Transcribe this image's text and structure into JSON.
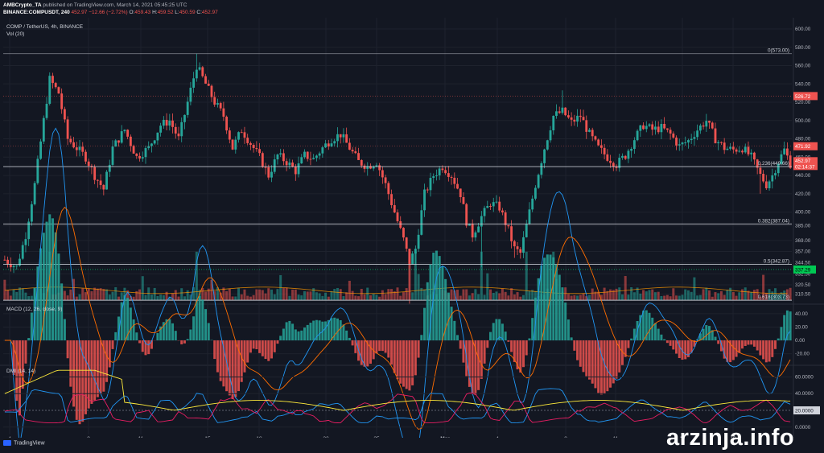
{
  "header": {
    "publisher": "AMBCrypto_TA",
    "published_text": " published on TradingView.com, March 14, 2021 05:45:25 UTC",
    "symbol_full": "BINANCE:COMPUSDT, 240",
    "last_price": "452.97",
    "change": "−12.66 (−2.72%)",
    "ohlc": {
      "o_label": "O:",
      "o": "459.43",
      "h_label": "H:",
      "h": "459.52",
      "l_label": "L:",
      "l": "450.59",
      "c_label": "C:",
      "c": "452.97"
    }
  },
  "legend": {
    "symbol": "COMP / TetherUS, 4h, BINANCE",
    "volume": "Vol (20)",
    "macd": "MACD (12, 26, close, 9)",
    "dmi": "DMI (14, 14)"
  },
  "footer": {
    "brand": "TradingView"
  },
  "watermark": "arzinja.info",
  "colors": {
    "background": "#131722",
    "up": "#26a69a",
    "down": "#ef5350",
    "grid": "#1e222d",
    "axis_text": "#b2b5be",
    "macd_line": "#2196f3",
    "signal_line": "#ff6d00",
    "adx": "#ffeb3b",
    "di_plus": "#2196f3",
    "di_minus": "#e91e63"
  },
  "chart_data": {
    "type": "candlestick",
    "x_tick_labels": [
      "4",
      "8",
      "11",
      "15",
      "18",
      "22",
      "25",
      "Mar",
      "4",
      "8",
      "11",
      "15",
      "18"
    ],
    "price_axis": {
      "ylim": [
        300,
        610
      ],
      "ticks": [
        "600.00",
        "580.00",
        "560.00",
        "540.00",
        "520.00",
        "500.00",
        "480.00",
        "460.00",
        "440.00",
        "420.00",
        "400.00",
        "385.00",
        "369.00",
        "357.00",
        "344.50",
        "332.50",
        "320.50",
        "310.50"
      ],
      "last_price_badge": "452.97",
      "countdown_badge": "02:14:37",
      "resistance_badges": [
        {
          "label": "526.72",
          "value": 526.72
        },
        {
          "label": "471.92",
          "value": 471.92
        }
      ],
      "support_badge": {
        "label": "337.29",
        "value": 337.29
      }
    },
    "fibonacci": [
      {
        "label": "0(573.00)",
        "value": 573.0
      },
      {
        "label": "0.236(449.66)",
        "value": 449.66
      },
      {
        "label": "0.382(387.04)",
        "value": 387.04
      },
      {
        "label": "0.5(342.87)",
        "value": 342.87
      },
      {
        "label": "0.618(303.73)",
        "value": 303.73
      }
    ],
    "price_anchors": [
      {
        "i": 0,
        "p": 348
      },
      {
        "i": 4,
        "p": 340
      },
      {
        "i": 7,
        "p": 375
      },
      {
        "i": 10,
        "p": 430
      },
      {
        "i": 13,
        "p": 500
      },
      {
        "i": 15,
        "p": 545
      },
      {
        "i": 18,
        "p": 530
      },
      {
        "i": 21,
        "p": 480
      },
      {
        "i": 24,
        "p": 470
      },
      {
        "i": 27,
        "p": 460
      },
      {
        "i": 30,
        "p": 440
      },
      {
        "i": 33,
        "p": 425
      },
      {
        "i": 36,
        "p": 470
      },
      {
        "i": 40,
        "p": 490
      },
      {
        "i": 44,
        "p": 460
      },
      {
        "i": 48,
        "p": 470
      },
      {
        "i": 52,
        "p": 495
      },
      {
        "i": 55,
        "p": 500
      },
      {
        "i": 58,
        "p": 480
      },
      {
        "i": 61,
        "p": 520
      },
      {
        "i": 64,
        "p": 560
      },
      {
        "i": 67,
        "p": 540
      },
      {
        "i": 70,
        "p": 520
      },
      {
        "i": 73,
        "p": 505
      },
      {
        "i": 76,
        "p": 470
      },
      {
        "i": 79,
        "p": 490
      },
      {
        "i": 82,
        "p": 475
      },
      {
        "i": 85,
        "p": 460
      },
      {
        "i": 88,
        "p": 440
      },
      {
        "i": 91,
        "p": 462
      },
      {
        "i": 94,
        "p": 455
      },
      {
        "i": 97,
        "p": 445
      },
      {
        "i": 100,
        "p": 462
      },
      {
        "i": 103,
        "p": 458
      },
      {
        "i": 106,
        "p": 470
      },
      {
        "i": 109,
        "p": 480
      },
      {
        "i": 112,
        "p": 485
      },
      {
        "i": 115,
        "p": 470
      },
      {
        "i": 118,
        "p": 455
      },
      {
        "i": 121,
        "p": 450
      },
      {
        "i": 124,
        "p": 455
      },
      {
        "i": 127,
        "p": 430
      },
      {
        "i": 130,
        "p": 400
      },
      {
        "i": 133,
        "p": 370
      },
      {
        "i": 135,
        "p": 345
      },
      {
        "i": 137,
        "p": 360
      },
      {
        "i": 140,
        "p": 420
      },
      {
        "i": 143,
        "p": 440
      },
      {
        "i": 146,
        "p": 450
      },
      {
        "i": 149,
        "p": 440
      },
      {
        "i": 152,
        "p": 420
      },
      {
        "i": 154,
        "p": 390
      },
      {
        "i": 156,
        "p": 375
      },
      {
        "i": 159,
        "p": 395
      },
      {
        "i": 162,
        "p": 410
      },
      {
        "i": 165,
        "p": 405
      },
      {
        "i": 168,
        "p": 380
      },
      {
        "i": 170,
        "p": 360
      },
      {
        "i": 172,
        "p": 355
      },
      {
        "i": 174,
        "p": 385
      },
      {
        "i": 177,
        "p": 430
      },
      {
        "i": 180,
        "p": 470
      },
      {
        "i": 183,
        "p": 505
      },
      {
        "i": 186,
        "p": 510
      },
      {
        "i": 189,
        "p": 498
      },
      {
        "i": 192,
        "p": 505
      },
      {
        "i": 195,
        "p": 485
      },
      {
        "i": 198,
        "p": 470
      },
      {
        "i": 201,
        "p": 460
      },
      {
        "i": 204,
        "p": 452
      },
      {
        "i": 207,
        "p": 462
      },
      {
        "i": 210,
        "p": 480
      },
      {
        "i": 213,
        "p": 495
      },
      {
        "i": 216,
        "p": 490
      },
      {
        "i": 219,
        "p": 492
      },
      {
        "i": 222,
        "p": 485
      },
      {
        "i": 225,
        "p": 472
      },
      {
        "i": 228,
        "p": 478
      },
      {
        "i": 231,
        "p": 490
      },
      {
        "i": 234,
        "p": 500
      },
      {
        "i": 237,
        "p": 480
      },
      {
        "i": 240,
        "p": 470
      },
      {
        "i": 243,
        "p": 468
      },
      {
        "i": 246,
        "p": 470
      },
      {
        "i": 249,
        "p": 460
      },
      {
        "i": 252,
        "p": 440
      },
      {
        "i": 254,
        "p": 430
      },
      {
        "i": 256,
        "p": 440
      },
      {
        "i": 258,
        "p": 455
      },
      {
        "i": 260,
        "p": 468
      },
      {
        "i": 262,
        "p": 453
      }
    ],
    "candle_count": 263,
    "macd_axis": {
      "ticks": [
        "40.00",
        "20.00",
        "0.00",
        "-20.00"
      ],
      "ylim": [
        -35,
        52
      ]
    },
    "dmi_axis": {
      "ticks": [
        "60.0000",
        "40.0000",
        "20.0000",
        "0.0000"
      ],
      "ylim": [
        -5,
        72
      ],
      "level_badge": "20.0000",
      "level": 20
    }
  }
}
